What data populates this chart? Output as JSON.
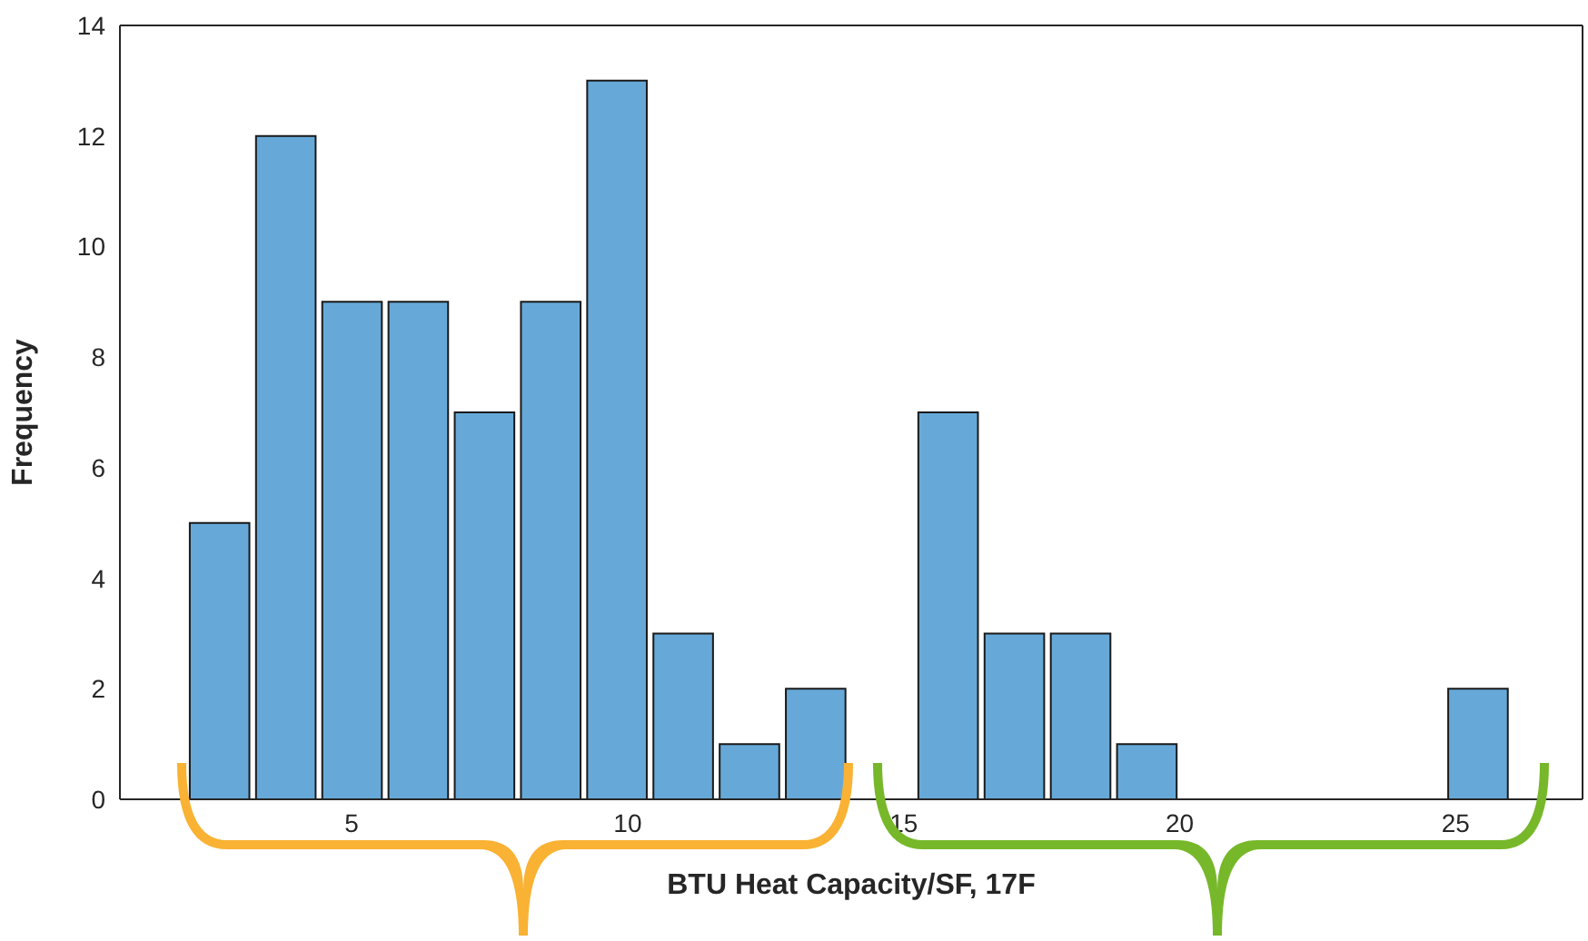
{
  "chart_data": {
    "type": "histogram",
    "xlabel": "BTU Heat Capacity/SF, 17F",
    "ylabel": "Frequency",
    "bins": [
      2.0,
      3.2,
      4.4,
      5.6,
      6.8,
      8.0,
      9.2,
      10.4,
      11.6,
      12.8,
      14.0,
      15.2,
      16.4,
      17.6,
      18.8,
      20.0,
      21.2,
      22.4,
      23.6,
      24.8,
      26.0
    ],
    "values": [
      5,
      12,
      9,
      9,
      7,
      9,
      13,
      3,
      1,
      2,
      0,
      7,
      3,
      3,
      1,
      0,
      0,
      0,
      0,
      2
    ],
    "color": "#66a9d8",
    "xlim": [
      0.8,
      27.3
    ],
    "xticks": [
      5,
      10,
      15,
      20,
      25
    ],
    "ylim": [
      0,
      14
    ],
    "yticks": [
      0,
      2,
      4,
      6,
      8,
      10,
      12,
      14
    ]
  }
}
